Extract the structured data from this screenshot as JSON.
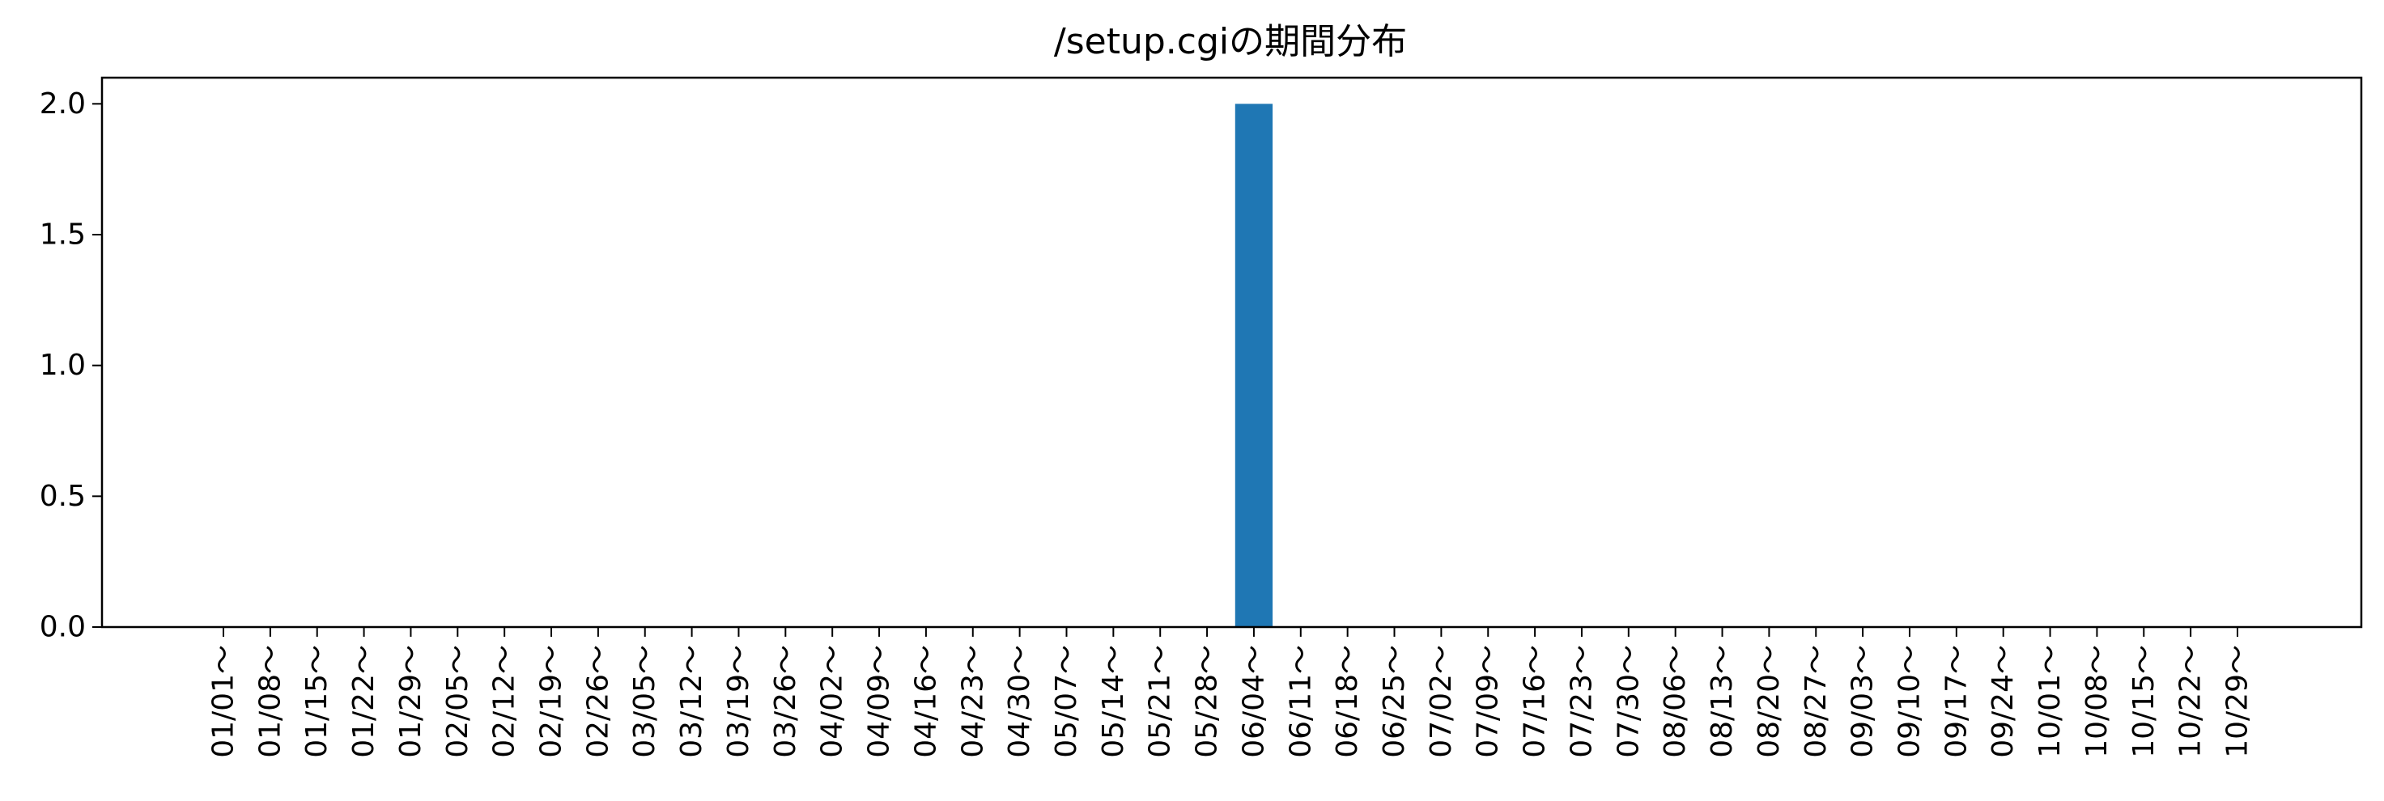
{
  "chart_data": {
    "type": "bar",
    "title": "/setup.cgiの期間分布",
    "xlabel": "",
    "ylabel": "",
    "ylim": [
      0,
      2.1
    ],
    "yticks": [
      "0.0",
      "0.5",
      "1.0",
      "1.5",
      "2.0"
    ],
    "ytick_values": [
      0,
      0.5,
      1.0,
      1.5,
      2.0
    ],
    "grid": false,
    "bar_color": "#1f77b4",
    "categories": [
      "01/01～",
      "01/08～",
      "01/15～",
      "01/22～",
      "01/29～",
      "02/05～",
      "02/12～",
      "02/19～",
      "02/26～",
      "03/05～",
      "03/12～",
      "03/19～",
      "03/26～",
      "04/02～",
      "04/09～",
      "04/16～",
      "04/23～",
      "04/30～",
      "05/07～",
      "05/14～",
      "05/21～",
      "05/28～",
      "06/04～",
      "06/11～",
      "06/18～",
      "06/25～",
      "07/02～",
      "07/09～",
      "07/16～",
      "07/23～",
      "07/30～",
      "08/06～",
      "08/13～",
      "08/20～",
      "08/27～",
      "09/03～",
      "09/10～",
      "09/17～",
      "09/24～",
      "10/01～",
      "10/08～",
      "10/15～",
      "10/22～",
      "10/29～"
    ],
    "values": [
      0,
      0,
      0,
      0,
      0,
      0,
      0,
      0,
      0,
      0,
      0,
      0,
      0,
      0,
      0,
      0,
      0,
      0,
      0,
      0,
      0,
      0,
      2,
      0,
      0,
      0,
      0,
      0,
      0,
      0,
      0,
      0,
      0,
      0,
      0,
      0,
      0,
      0,
      0,
      0,
      0,
      0,
      0,
      0
    ]
  }
}
